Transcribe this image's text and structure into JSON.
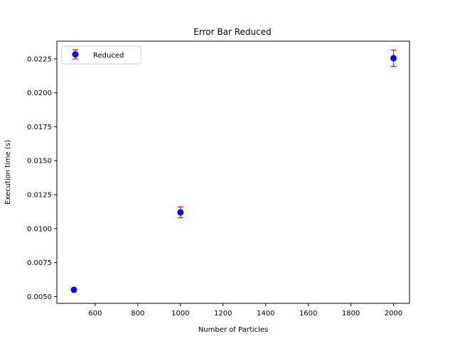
{
  "chart_data": {
    "type": "scatter",
    "title": "Error Bar Reduced",
    "xlabel": "Number of Particles",
    "ylabel": "Execution time (s)",
    "xlim": [
      420,
      2075
    ],
    "ylim": [
      0.0045,
      0.0238
    ],
    "x_ticks": [
      600,
      800,
      1000,
      1200,
      1400,
      1600,
      1800,
      2000
    ],
    "x_tick_labels": [
      "600",
      "800",
      "1000",
      "1200",
      "1400",
      "1600",
      "1800",
      "2000"
    ],
    "y_ticks": [
      0.005,
      0.0075,
      0.01,
      0.0125,
      0.015,
      0.0175,
      0.02,
      0.0225
    ],
    "y_tick_labels": [
      "0.0050",
      "0.0075",
      "0.0100",
      "0.0125",
      "0.0150",
      "0.0175",
      "0.0200",
      "0.0225"
    ],
    "grid": false,
    "legend_position": "top-left",
    "series": [
      {
        "name": "Reduced",
        "x": [
          500,
          1000,
          2000
        ],
        "y": [
          0.0055,
          0.0112,
          0.02255
        ],
        "yerr": [
          0.0001,
          0.0004,
          0.0006
        ],
        "marker_color": "#0000ff",
        "errorbar_color": "#ff0000"
      }
    ]
  }
}
